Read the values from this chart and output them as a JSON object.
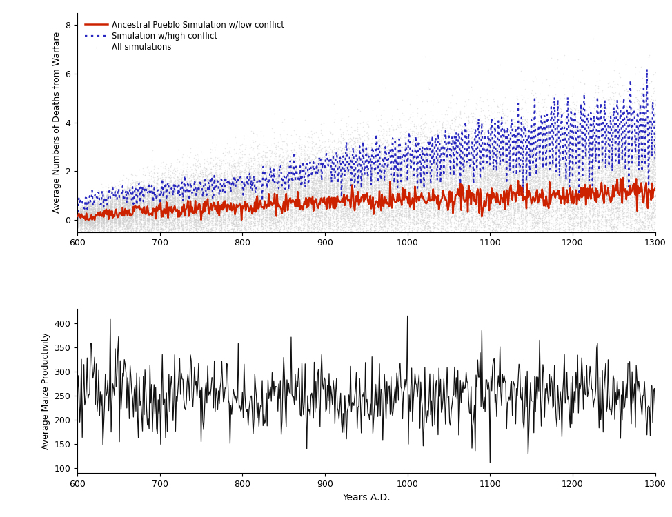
{
  "top_chart": {
    "ylabel": "Average Numbers of Deaths from Warfare",
    "xlabel": "",
    "xlim": [
      600,
      1300
    ],
    "ylim": [
      -0.5,
      8.5
    ],
    "yticks": [
      0,
      2,
      4,
      6,
      8
    ],
    "xticks": [
      600,
      700,
      800,
      900,
      1000,
      1100,
      1200,
      1300
    ],
    "legend": {
      "low_conflict": "Ancestral Pueblo Simulation w/low conflict",
      "high_conflict": "Simulation w/high conflict",
      "all_sims": "All simulations"
    },
    "colors": {
      "low_conflict": "#cc2200",
      "high_conflict": "#1111bb",
      "all_sims": "#cccccc"
    }
  },
  "bottom_chart": {
    "ylabel": "Average Maize Productivity",
    "xlabel": "Years A.D.",
    "xlim": [
      600,
      1300
    ],
    "ylim": [
      90,
      430
    ],
    "yticks": [
      100,
      150,
      200,
      250,
      300,
      350,
      400
    ],
    "xticks": [
      600,
      700,
      800,
      900,
      1000,
      1100,
      1200,
      1300
    ],
    "color": "#111111"
  },
  "seed": 42
}
